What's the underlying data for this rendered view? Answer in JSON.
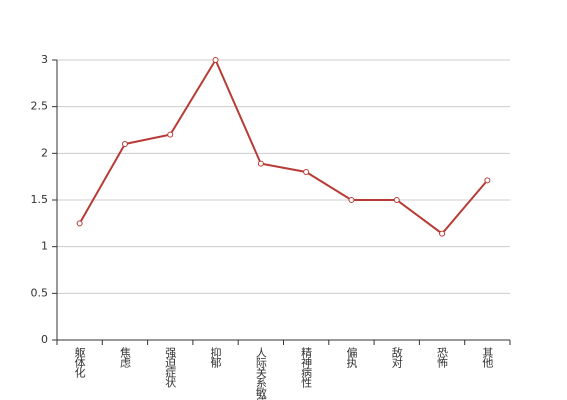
{
  "chart_data": {
    "type": "line",
    "categories": [
      "躯体化",
      "焦虑",
      "强迫症状",
      "抑郁",
      "人际关系敏感",
      "精神病性",
      "偏执",
      "敌对",
      "恐怖",
      "其他"
    ],
    "values": [
      1.25,
      2.1,
      2.2,
      3,
      1.89,
      1.8,
      1.5,
      1.5,
      1.14,
      1.71
    ],
    "color": "#b83b35",
    "ylim": [
      0,
      3
    ],
    "yticks": [
      0,
      0.5,
      1,
      1.5,
      2,
      2.5,
      3
    ],
    "grid": true
  }
}
